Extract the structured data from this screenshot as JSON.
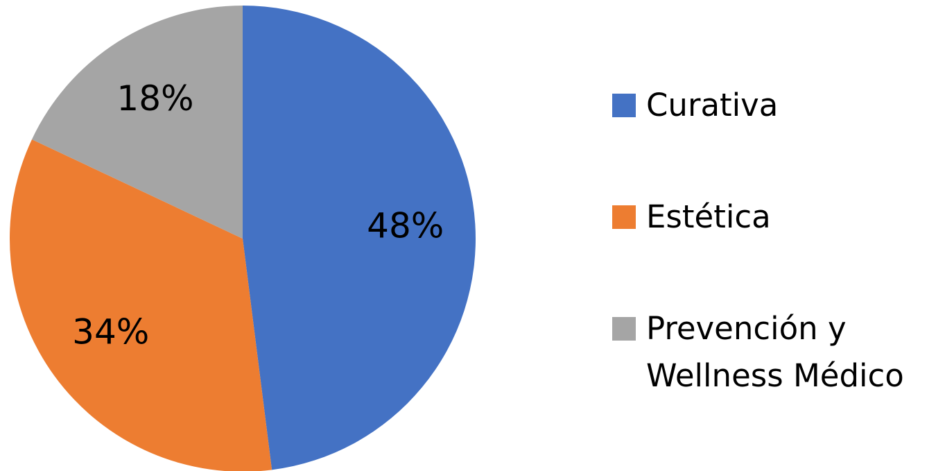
{
  "chart_data": {
    "type": "pie",
    "categories": [
      "Curativa",
      "Estética",
      "Prevención y Wellness Médico"
    ],
    "values": [
      48,
      34,
      18
    ],
    "value_labels": [
      "48%",
      "34%",
      "18%"
    ],
    "colors": [
      "#4472c4",
      "#ed7d31",
      "#a5a5a5"
    ],
    "legend": "right"
  }
}
